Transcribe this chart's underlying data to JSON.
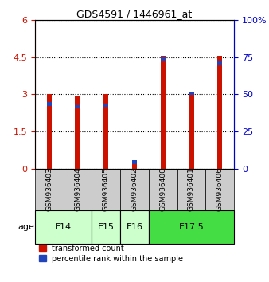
{
  "title": "GDS4591 / 1446961_at",
  "samples": [
    "GSM936403",
    "GSM936404",
    "GSM936405",
    "GSM936402",
    "GSM936400",
    "GSM936401",
    "GSM936406"
  ],
  "transformed_count": [
    3.02,
    2.95,
    3.03,
    0.2,
    4.55,
    3.0,
    4.55
  ],
  "percentile_rank_pct": [
    45,
    43,
    44,
    6,
    75,
    52,
    72
  ],
  "age_group_spans": [
    {
      "label": "E14",
      "start": 0,
      "end": 2,
      "color": "#ccffcc"
    },
    {
      "label": "E15",
      "start": 2,
      "end": 3,
      "color": "#ccffcc"
    },
    {
      "label": "E16",
      "start": 3,
      "end": 4,
      "color": "#ccffcc"
    },
    {
      "label": "E17.5",
      "start": 4,
      "end": 7,
      "color": "#44dd44"
    }
  ],
  "left_ylim": [
    0,
    6
  ],
  "left_yticks": [
    0,
    1.5,
    3.0,
    4.5,
    6
  ],
  "left_yticklabels": [
    "0",
    "1.5",
    "3",
    "4.5",
    "6"
  ],
  "right_ylim": [
    0,
    100
  ],
  "right_yticks": [
    0,
    25,
    50,
    75,
    100
  ],
  "right_yticklabels": [
    "0",
    "25",
    "50",
    "75",
    "100%"
  ],
  "bar_color_red": "#cc1100",
  "bar_color_blue": "#2244bb",
  "grid_color": "#000000",
  "bg_color": "#ffffff",
  "tick_label_color_left": "#cc1100",
  "tick_label_color_right": "#0000cc",
  "bar_width": 0.18,
  "sample_box_color": "#cccccc",
  "age_label_color": "#000000"
}
